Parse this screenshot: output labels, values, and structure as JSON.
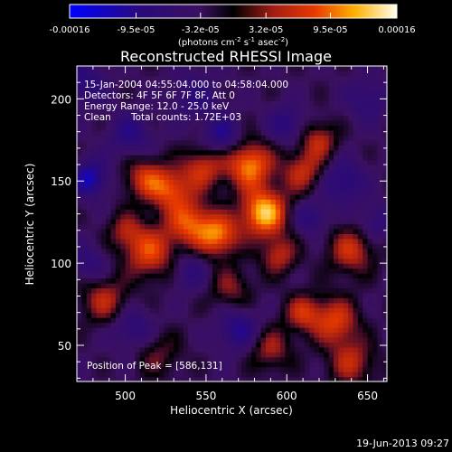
{
  "chart_data": {
    "type": "heatmap",
    "title": "Reconstructed RHESSI Image",
    "xlabel": "Heliocentric X (arcsec)",
    "ylabel": "Heliocentric Y (arcsec)",
    "xlim": [
      470,
      662
    ],
    "ylim": [
      28,
      220
    ],
    "x_ticks": [
      500,
      550,
      600,
      650
    ],
    "y_ticks": [
      50,
      100,
      150,
      200
    ],
    "colorbar": {
      "range": [
        -0.00016,
        0.00016
      ],
      "tick_labels": [
        "-0.00016",
        "-9.5e-05",
        "-3.2e-05",
        "3.2e-05",
        "9.5e-05",
        "0.00016"
      ],
      "unit_parts": {
        "open": "(photons cm",
        "e1": "-2",
        "mid1": " s",
        "e2": "-1",
        "mid2": " asec",
        "e3": "-2",
        "close": ")"
      }
    },
    "annotations": {
      "time_range": "15-Jan-2004 04:55:04.000 to 04:58:04.000",
      "detectors": "Detectors: 4F 5F 6F 7F 8F, Att 0",
      "energy_range": "Energy Range: 12.0 - 25.0 keV",
      "clean": "Clean",
      "total_counts": "Total counts: 1.72E+03",
      "peak_position": "Position of Peak = [586,131]"
    },
    "peak": [
      586,
      131
    ],
    "bright_sources": [
      {
        "x": 586,
        "y": 131,
        "value": 0.00016,
        "sigma": 10
      },
      {
        "x": 577,
        "y": 160,
        "value": 0.000135,
        "sigma": 10
      },
      {
        "x": 558,
        "y": 117,
        "value": 0.00012,
        "sigma": 9
      },
      {
        "x": 540,
        "y": 125,
        "value": 0.00011,
        "sigma": 10
      },
      {
        "x": 515,
        "y": 107,
        "value": 0.000105,
        "sigma": 11
      },
      {
        "x": 528,
        "y": 145,
        "value": 0.0001,
        "sigma": 9
      },
      {
        "x": 548,
        "y": 158,
        "value": 9e-05,
        "sigma": 9
      },
      {
        "x": 512,
        "y": 152,
        "value": 9e-05,
        "sigma": 9
      },
      {
        "x": 487,
        "y": 78,
        "value": 8e-05,
        "sigma": 10
      },
      {
        "x": 610,
        "y": 156,
        "value": 8.5e-05,
        "sigma": 9
      },
      {
        "x": 620,
        "y": 175,
        "value": 8e-05,
        "sigma": 8
      },
      {
        "x": 640,
        "y": 108,
        "value": 9e-05,
        "sigma": 10
      },
      {
        "x": 630,
        "y": 65,
        "value": 0.0001,
        "sigma": 10
      },
      {
        "x": 610,
        "y": 70,
        "value": 8.5e-05,
        "sigma": 8
      },
      {
        "x": 595,
        "y": 105,
        "value": 8e-05,
        "sigma": 8
      },
      {
        "x": 565,
        "y": 85,
        "value": 6e-05,
        "sigma": 9
      },
      {
        "x": 640,
        "y": 40,
        "value": 8e-05,
        "sigma": 10
      },
      {
        "x": 590,
        "y": 48,
        "value": 7e-05,
        "sigma": 9
      },
      {
        "x": 520,
        "y": 45,
        "value": 5e-05,
        "sigma": 10
      },
      {
        "x": 500,
        "y": 120,
        "value": 6e-05,
        "sigma": 8
      }
    ],
    "dark_sources": [
      {
        "x": 478,
        "y": 152,
        "value": -9e-05,
        "sigma": 8
      },
      {
        "x": 503,
        "y": 178,
        "value": -6e-05,
        "sigma": 9
      },
      {
        "x": 560,
        "y": 178,
        "value": -7e-05,
        "sigma": 8
      },
      {
        "x": 543,
        "y": 202,
        "value": -5e-05,
        "sigma": 10
      },
      {
        "x": 600,
        "y": 185,
        "value": -6e-05,
        "sigma": 8
      },
      {
        "x": 635,
        "y": 150,
        "value": -7e-05,
        "sigma": 9
      },
      {
        "x": 650,
        "y": 200,
        "value": -5e-05,
        "sigma": 9
      },
      {
        "x": 540,
        "y": 95,
        "value": -5e-05,
        "sigma": 8
      },
      {
        "x": 570,
        "y": 60,
        "value": -7e-05,
        "sigma": 9
      },
      {
        "x": 505,
        "y": 60,
        "value": -6e-05,
        "sigma": 9
      },
      {
        "x": 615,
        "y": 128,
        "value": -6e-05,
        "sigma": 7
      },
      {
        "x": 655,
        "y": 125,
        "value": -5e-05,
        "sigma": 8
      },
      {
        "x": 478,
        "y": 100,
        "value": -5e-05,
        "sigma": 8
      },
      {
        "x": 475,
        "y": 210,
        "value": -6e-05,
        "sigma": 9
      }
    ],
    "footer_timestamp": "19-Jun-2013 09:27"
  }
}
